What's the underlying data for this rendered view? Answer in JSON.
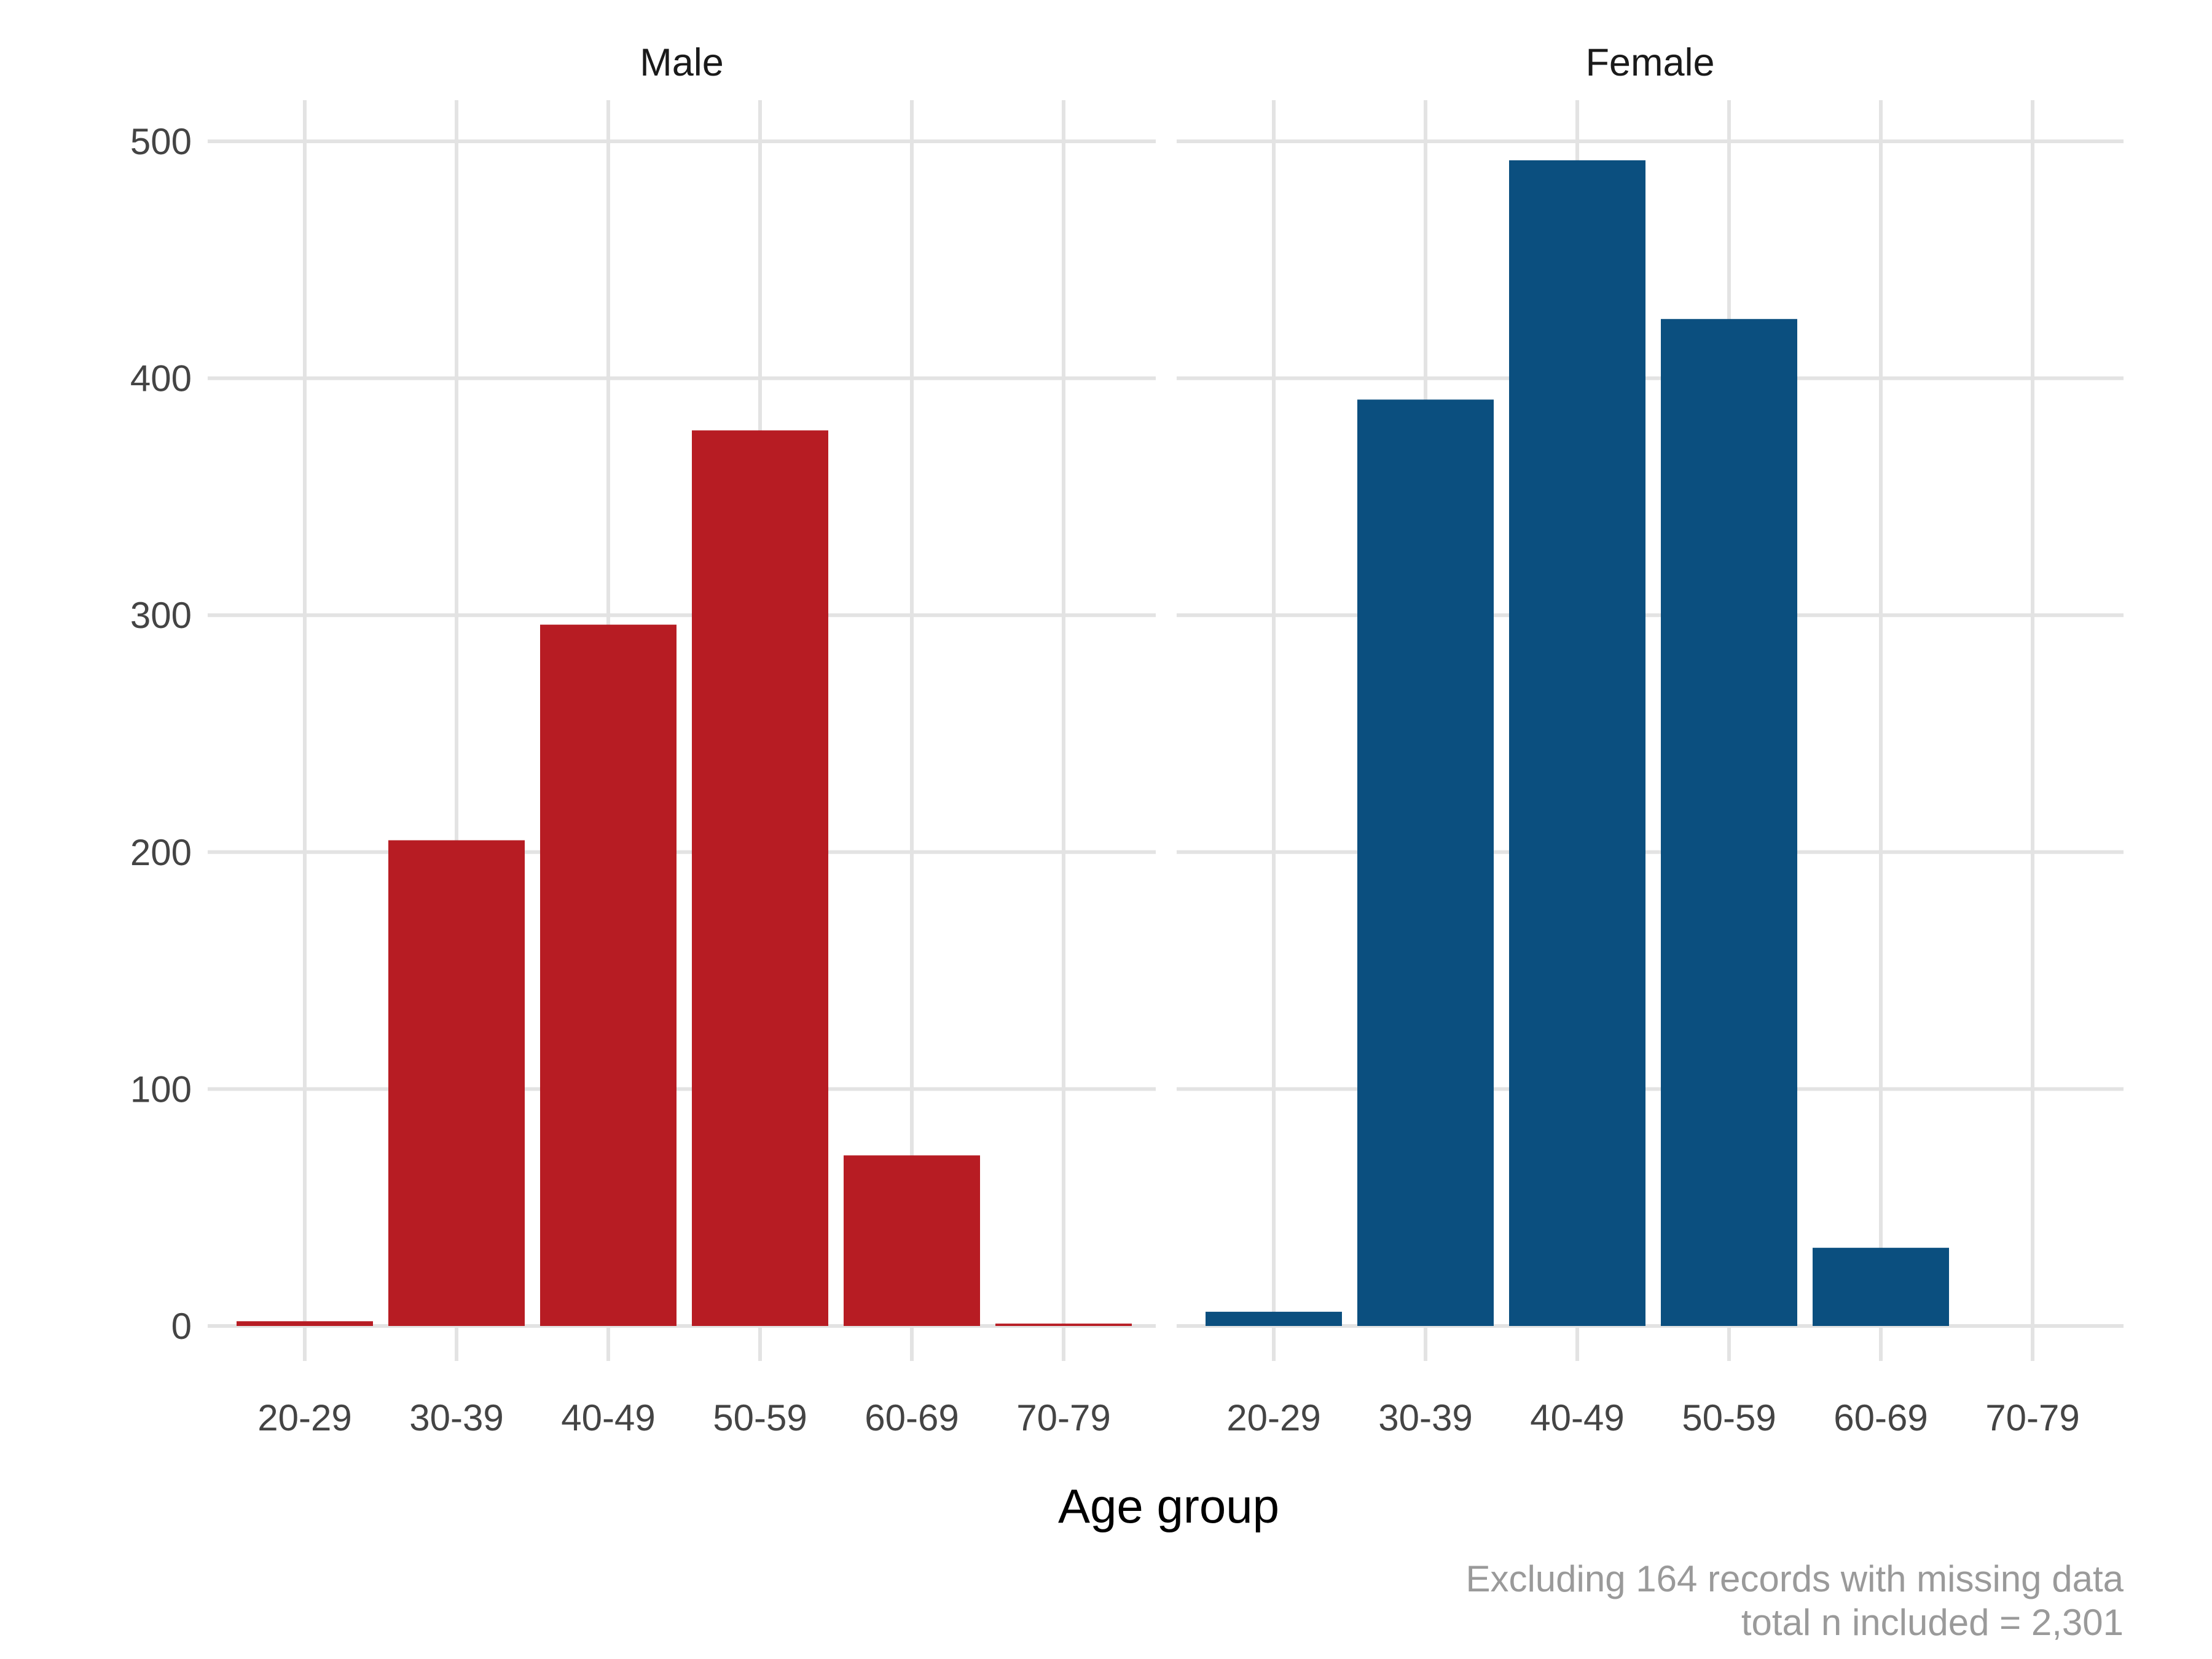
{
  "chart_data": {
    "type": "bar",
    "faceted_by": "sex",
    "xlabel": "Age group",
    "ylabel": "",
    "ylim": [
      0,
      500
    ],
    "y_ticks": [
      "0",
      "100",
      "200",
      "300",
      "400",
      "500"
    ],
    "y_tick_values": [
      0,
      100,
      200,
      300,
      400,
      500
    ],
    "grid": true,
    "legend": "none",
    "categories": [
      "20-29",
      "30-39",
      "40-49",
      "50-59",
      "60-69",
      "70-79"
    ],
    "panels": [
      {
        "label": "Male",
        "color": "#b71c23",
        "values": [
          2,
          205,
          296,
          378,
          72,
          1
        ]
      },
      {
        "label": "Female",
        "color": "#0b4f7f",
        "values": [
          6,
          391,
          492,
          425,
          33,
          0
        ]
      }
    ],
    "caption_lines": [
      "Excluding 164 records with missing data",
      "total n included = 2,301"
    ]
  }
}
